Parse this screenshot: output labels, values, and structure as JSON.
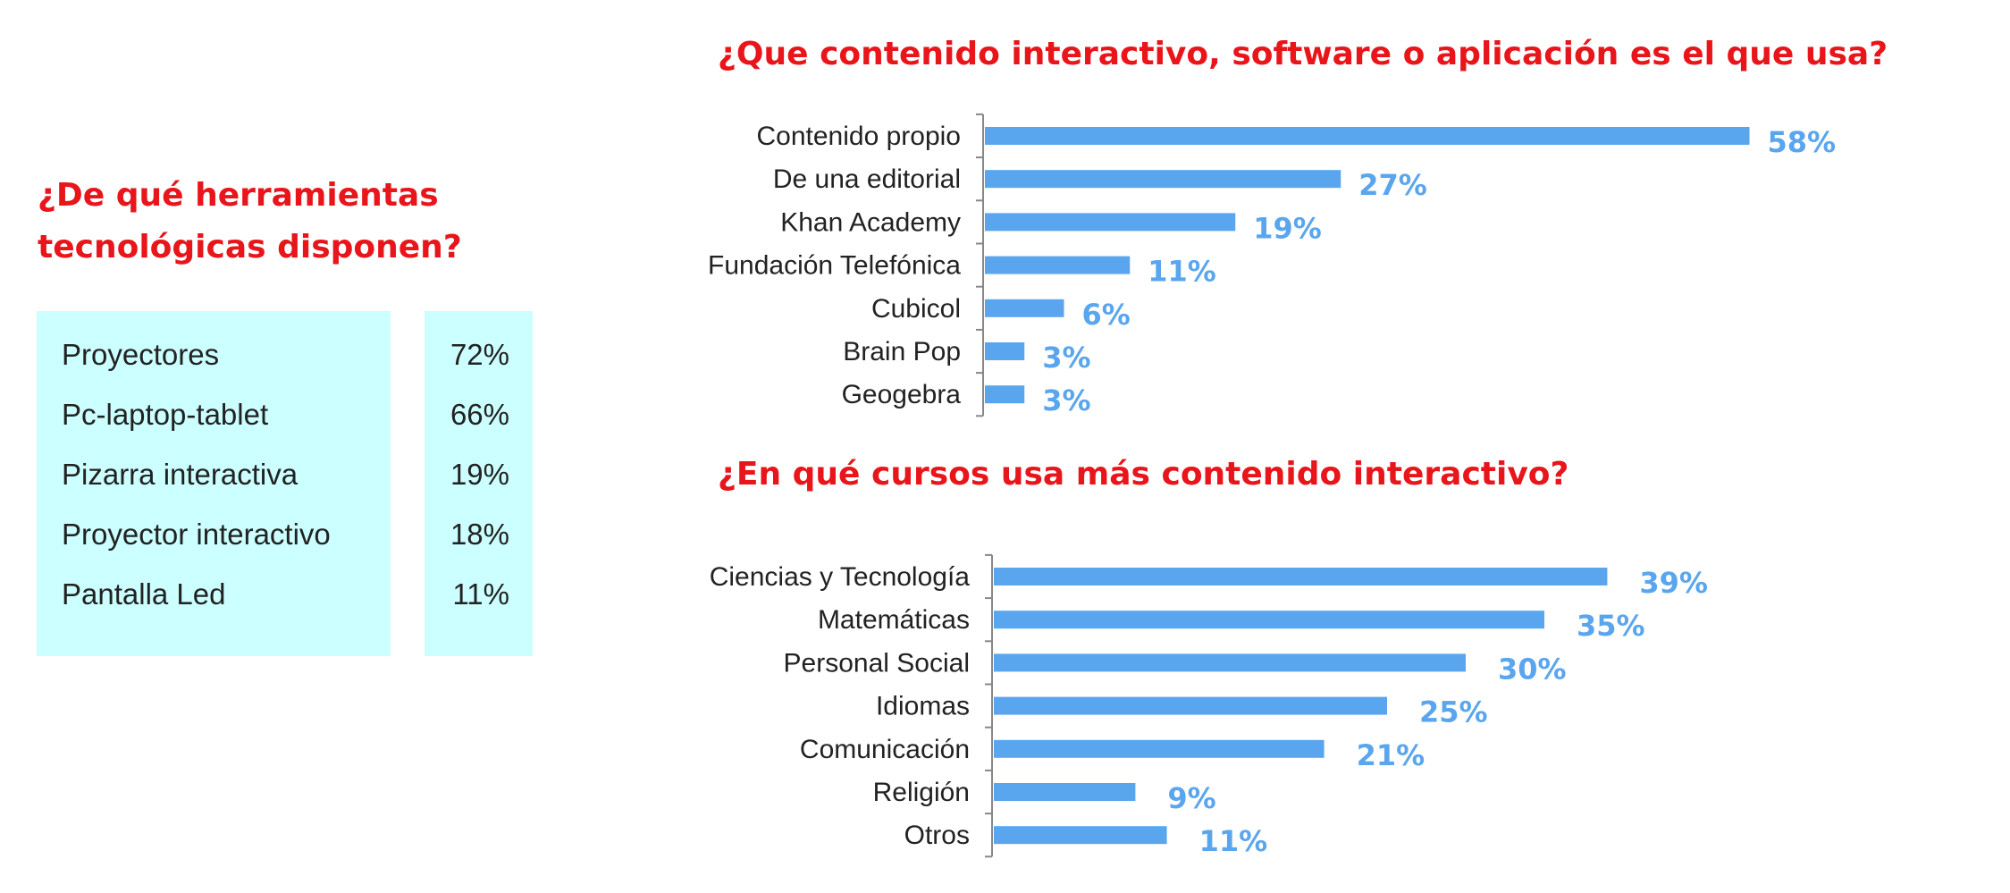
{
  "tools": {
    "title": "¿De qué herramientas tecnológicas disponen?",
    "rows": [
      {
        "name": "Proyectores",
        "value": "72%"
      },
      {
        "name": "Pc-laptop-tablet",
        "value": "66%"
      },
      {
        "name": "Pizarra interactiva",
        "value": "19%"
      },
      {
        "name": "Proyector interactivo",
        "value": "18%"
      },
      {
        "name": "Pantalla Led",
        "value": "11%"
      }
    ]
  },
  "software": {
    "title": "¿Que contenido interactivo, software o aplicación es el que usa?"
  },
  "courses": {
    "title": "¿En qué cursos usa más contenido interactivo?"
  },
  "colors": {
    "title": "#e8151b",
    "bar": "#5aa6ee",
    "table_bg": "#ccffff"
  },
  "chart_data": [
    {
      "type": "bar",
      "orientation": "horizontal",
      "title": "¿Que contenido interactivo, software o aplicación es el que usa?",
      "categories": [
        "Contenido propio",
        "De una editorial",
        "Khan Academy",
        "Fundación Telefónica",
        "Cubicol",
        "Brain Pop",
        "Geogebra"
      ],
      "values": [
        58,
        27,
        19,
        11,
        6,
        3,
        3
      ],
      "value_labels": [
        "58%",
        "27%",
        "19%",
        "11%",
        "6%",
        "3%",
        "3%"
      ],
      "unit": "%",
      "xlim": [
        0,
        60
      ],
      "grid": false
    },
    {
      "type": "bar",
      "orientation": "horizontal",
      "title": "¿En qué cursos usa más contenido interactivo?",
      "categories": [
        "Ciencias y Tecnología",
        "Matemáticas",
        "Personal Social",
        "Idiomas",
        "Comunicación",
        "Religión",
        "Otros"
      ],
      "values": [
        39,
        35,
        30,
        25,
        21,
        9,
        11
      ],
      "value_labels": [
        "39%",
        "35%",
        "30%",
        "25%",
        "21%",
        "9%",
        "11%"
      ],
      "unit": "%",
      "xlim": [
        0,
        40
      ],
      "grid": false
    }
  ]
}
